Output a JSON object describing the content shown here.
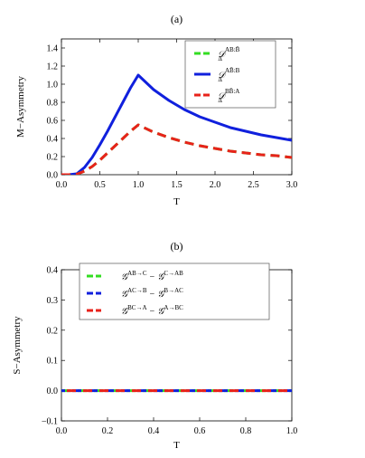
{
  "chart_data": [
    {
      "type": "line",
      "panel_label": "(a)",
      "xlabel": "T",
      "ylabel": "M−Asymmetry",
      "xlim": [
        0,
        3.0
      ],
      "ylim": [
        0,
        1.5
      ],
      "xticks": [
        "0.0",
        "0.5",
        "1.0",
        "1.5",
        "2.0",
        "2.5",
        "3.0"
      ],
      "yticks": [
        "0.0",
        "0.2",
        "0.4",
        "0.6",
        "0.8",
        "1.0",
        "1.2",
        "1.4"
      ],
      "legend_position": "top-right",
      "series": [
        {
          "name": "𝒟Δ^{AB:B̄}",
          "legend_main": "𝒟",
          "legend_sup": "AB:B̄",
          "legend_sub": "Δ",
          "color": "#33dd22",
          "style": "dashed",
          "x": [
            0.0,
            0.1,
            0.2,
            0.3,
            0.4,
            0.5,
            0.6,
            0.7,
            0.8,
            0.9,
            1.0,
            1.2,
            1.4,
            1.6,
            1.8,
            2.0,
            2.2,
            2.4,
            2.6,
            2.8,
            3.0
          ],
          "y": [
            0.0,
            0.0,
            0.005,
            0.04,
            0.09,
            0.16,
            0.24,
            0.32,
            0.4,
            0.48,
            0.55,
            0.47,
            0.41,
            0.36,
            0.32,
            0.29,
            0.26,
            0.24,
            0.22,
            0.21,
            0.19
          ]
        },
        {
          "name": "𝒟Δ^{AB̄:B}",
          "legend_main": "𝒟",
          "legend_sup": "AB̄:B",
          "legend_sub": "Δ",
          "color": "#1020dd",
          "style": "solid",
          "x": [
            0.0,
            0.1,
            0.2,
            0.3,
            0.4,
            0.5,
            0.6,
            0.7,
            0.8,
            0.9,
            1.0,
            1.2,
            1.4,
            1.6,
            1.8,
            2.0,
            2.2,
            2.4,
            2.6,
            2.8,
            3.0
          ],
          "y": [
            0.0,
            0.0,
            0.01,
            0.08,
            0.19,
            0.33,
            0.48,
            0.64,
            0.8,
            0.96,
            1.1,
            0.94,
            0.82,
            0.72,
            0.64,
            0.58,
            0.52,
            0.48,
            0.44,
            0.41,
            0.38
          ]
        },
        {
          "name": "𝒟Δ^{BB̄:A}",
          "legend_main": "𝒟",
          "legend_sup": "BB̄:A",
          "legend_sub": "Δ",
          "color": "#e8221a",
          "style": "dashed",
          "x": [
            0.0,
            0.1,
            0.2,
            0.3,
            0.4,
            0.5,
            0.6,
            0.7,
            0.8,
            0.9,
            1.0,
            1.2,
            1.4,
            1.6,
            1.8,
            2.0,
            2.2,
            2.4,
            2.6,
            2.8,
            3.0
          ],
          "y": [
            0.0,
            0.0,
            0.005,
            0.04,
            0.09,
            0.16,
            0.24,
            0.32,
            0.4,
            0.48,
            0.55,
            0.47,
            0.41,
            0.36,
            0.32,
            0.29,
            0.26,
            0.24,
            0.22,
            0.21,
            0.19
          ]
        }
      ]
    },
    {
      "type": "line",
      "panel_label": "(b)",
      "xlabel": "T",
      "ylabel": "S−Asymmetry",
      "xlim": [
        0,
        1.0
      ],
      "ylim": [
        -0.1,
        0.4
      ],
      "xticks": [
        "0.0",
        "0.2",
        "0.4",
        "0.6",
        "0.8",
        "1.0"
      ],
      "yticks": [
        "−0.1",
        "0.0",
        "0.1",
        "0.2",
        "0.3",
        "0.4"
      ],
      "legend_position": "top-center",
      "series": [
        {
          "name": "𝒢^{AB→C} − 𝒢^{C→AB}",
          "legend_a_main": "𝒢",
          "legend_a_sup": "AB→C",
          "legend_b_main": "𝒢",
          "legend_b_sup": "C→AB",
          "color": "#33dd22",
          "style": "dashed",
          "x": [
            0.0,
            1.0
          ],
          "y": [
            0.0,
            0.0
          ]
        },
        {
          "name": "𝒢^{AC→B} − 𝒢^{B→AC}",
          "legend_a_main": "𝒢",
          "legend_a_sup": "AC→B",
          "legend_b_main": "𝒢",
          "legend_b_sup": "B→AC",
          "color": "#1020dd",
          "style": "dashed",
          "x": [
            0.0,
            1.0
          ],
          "y": [
            0.0,
            0.0
          ]
        },
        {
          "name": "𝒢^{BC→A} − 𝒢^{A→BC}",
          "legend_a_main": "𝒢",
          "legend_a_sup": "BC→A",
          "legend_b_main": "𝒢",
          "legend_b_sup": "A→BC",
          "color": "#e8221a",
          "style": "dashed",
          "x": [
            0.0,
            1.0
          ],
          "y": [
            0.0,
            0.0
          ]
        }
      ]
    }
  ]
}
